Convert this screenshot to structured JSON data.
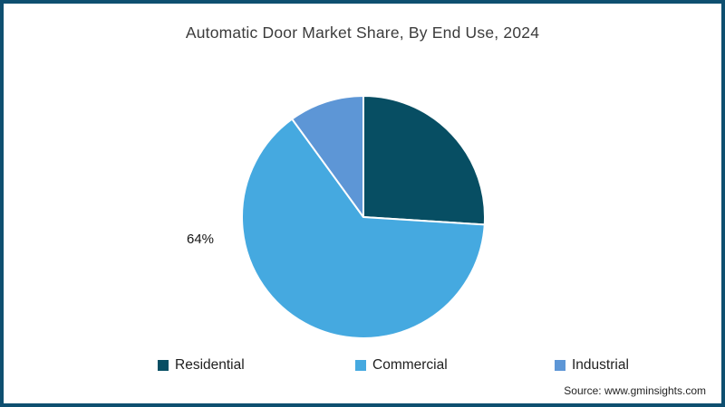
{
  "chart_data": {
    "type": "pie",
    "title": "Automatic Door Market Share, By End Use, 2024",
    "categories": [
      "Residential",
      "Commercial",
      "Industrial"
    ],
    "values": [
      26,
      64,
      10
    ],
    "colors": [
      "#074e63",
      "#45a9e0",
      "#5d96d6"
    ],
    "data_label": "64%",
    "data_label_slice": "Commercial",
    "start_angle_deg": 0,
    "direction": "clockwise",
    "legend_position": "bottom",
    "slice_divider_color": "#ffffff"
  },
  "legend": {
    "items": [
      {
        "label": "Residential",
        "color": "#074e63"
      },
      {
        "label": "Commercial",
        "color": "#45a9e0"
      },
      {
        "label": "Industrial",
        "color": "#5d96d6"
      }
    ]
  },
  "source_note": "Source: www.gminsights.com",
  "colors": {
    "frame_border": "#0e4f70",
    "title_text": "#3c3c3c",
    "background": "#ffffff"
  }
}
